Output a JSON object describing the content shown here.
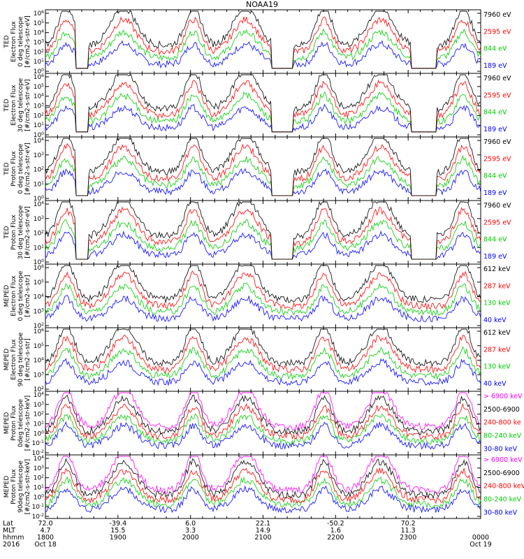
{
  "title": "NOAA19",
  "chart_data": {
    "type": "line",
    "xaxis": {
      "row_labels": [
        "Lat",
        "MLT",
        "hhmm",
        "2016"
      ],
      "columns": [
        {
          "values": [
            "72.0",
            "4.7",
            "1800",
            "Oct 18"
          ]
        },
        {
          "values": [
            "-39.4",
            "15.5",
            "1900",
            ""
          ]
        },
        {
          "values": [
            "6.0",
            "3.3",
            "2000",
            ""
          ]
        },
        {
          "values": [
            "22.1",
            "14.9",
            "2100",
            ""
          ]
        },
        {
          "values": [
            "-50.2",
            "1.6",
            "2200",
            ""
          ]
        },
        {
          "values": [
            "70.2",
            "11.3",
            "2300",
            ""
          ]
        },
        {
          "values": [
            "",
            "",
            "0000",
            "Oct 19"
          ]
        }
      ]
    },
    "panels": [
      {
        "ylabel": [
          "TED",
          "Electron Flux",
          "0 deg telescope",
          "[#/cm2-s-str-eV]"
        ],
        "ylog": [
          0,
          6
        ],
        "series": [
          {
            "name": "7960 eV",
            "color": "#000000"
          },
          {
            "name": "2595 eV",
            "color": "#ff0000"
          },
          {
            "name": "844 eV",
            "color": "#00cc00"
          },
          {
            "name": "189 eV",
            "color": "#0000ff"
          }
        ]
      },
      {
        "ylabel": [
          "TED",
          "Electron Flux",
          "30 deg telescope",
          "[#/cm2-s-str-eV]"
        ],
        "ylog": [
          0,
          6
        ],
        "series": [
          {
            "name": "7960 eV",
            "color": "#000000"
          },
          {
            "name": "2595 eV",
            "color": "#ff0000"
          },
          {
            "name": "844 eV",
            "color": "#00cc00"
          },
          {
            "name": "189 eV",
            "color": "#0000ff"
          }
        ]
      },
      {
        "ylabel": [
          "TED",
          "Proton Flux",
          "0 deg telescope",
          "[#/cm2-s-str-eV]"
        ],
        "ylog": [
          0,
          4
        ],
        "series": [
          {
            "name": "7960 eV",
            "color": "#000000"
          },
          {
            "name": "2595 eV",
            "color": "#ff0000"
          },
          {
            "name": "844 eV",
            "color": "#00cc00"
          },
          {
            "name": "189 eV",
            "color": "#0000ff"
          }
        ]
      },
      {
        "ylabel": [
          "TED",
          "Proton Flux",
          "30 deg telescope",
          "[#/cm2-s-str-eV]"
        ],
        "ylog": [
          0,
          4
        ],
        "series": [
          {
            "name": "7960 eV",
            "color": "#000000"
          },
          {
            "name": "2595 eV",
            "color": "#ff0000"
          },
          {
            "name": "844 eV",
            "color": "#00cc00"
          },
          {
            "name": "189 eV",
            "color": "#0000ff"
          }
        ]
      },
      {
        "ylabel": [
          "MEPED",
          "Electron Flux",
          "0 deg telescope",
          "[#/cm2-s-str]"
        ],
        "ylog": [
          2,
          6
        ],
        "series": [
          {
            "name": "612 keV",
            "color": "#000000"
          },
          {
            "name": "287 keV",
            "color": "#ff0000"
          },
          {
            "name": "130 keV",
            "color": "#00cc00"
          },
          {
            "name": "40 keV",
            "color": "#0000ff"
          }
        ]
      },
      {
        "ylabel": [
          "MEPED",
          "Electron Flux",
          "90 deg telescope",
          "[#/cm2-s-str]"
        ],
        "ylog": [
          2,
          6
        ],
        "series": [
          {
            "name": "612 keV",
            "color": "#000000"
          },
          {
            "name": "287 keV",
            "color": "#ff0000"
          },
          {
            "name": "130 keV",
            "color": "#00cc00"
          },
          {
            "name": "40 keV",
            "color": "#0000ff"
          }
        ]
      },
      {
        "ylabel": [
          "MEPED",
          "Proton Flux",
          "0deg telescope",
          "[#/cm2-s-str-keV]"
        ],
        "ylog": [
          -2,
          4
        ],
        "series": [
          {
            "name": "> 6900 keV",
            "color": "#ff00ff"
          },
          {
            "name": "2500-6900",
            "color": "#000000"
          },
          {
            "name": "240-800 ke",
            "color": "#ff0000"
          },
          {
            "name": "80-240 keV",
            "color": "#00cc00"
          },
          {
            "name": "30-80 keV",
            "color": "#0000ff"
          }
        ]
      },
      {
        "ylabel": [
          "MEPED",
          "Proton Flux",
          "90deg telescope",
          "[#/cm2-s-str-keV]"
        ],
        "ylog": [
          -2,
          4
        ],
        "series": [
          {
            "name": "> 6900 keV",
            "color": "#ff00ff"
          },
          {
            "name": "2500-6900",
            "color": "#000000"
          },
          {
            "name": "240-800 keV",
            "color": "#ff0000"
          },
          {
            "name": "80-240 keV",
            "color": "#00cc00"
          },
          {
            "name": "30-80 keV",
            "color": "#0000ff"
          }
        ]
      }
    ]
  }
}
